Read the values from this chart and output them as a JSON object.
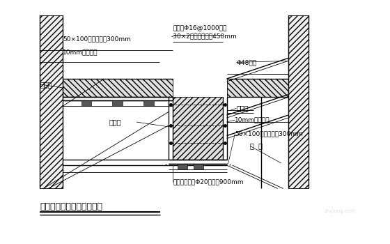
{
  "title": "框架梁、现浇板模板支撑图",
  "bg_color": "#ffffff",
  "annotations": {
    "top_left_batten": "50×100木枳，间距300mm",
    "top_left_board": "10mm厅复合板",
    "xianjiban": "现浇板",
    "kuangjialiang": "框架梁",
    "liang_nei_cheng": "梁内撞Φ16@1000钉筋",
    "flat_iron": "-30×2对拉扁铁间距450mm",
    "steel_pipe": "Φ48钉管",
    "corner_mold": "阴角模",
    "right_board": "10mm厅复合板",
    "right_batten": "50×100木枳，间距300mm",
    "brace": "斜  支",
    "welded_frame": "钉筋焊接支架Φ20，间距900mm"
  }
}
